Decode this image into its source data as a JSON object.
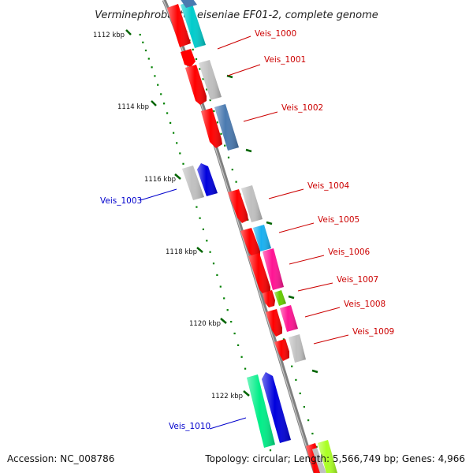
{
  "title": "Verminephrobacter eiseniae EF01-2, complete genome",
  "footer": {
    "accession": "Accession: NC_008786",
    "summary": "Topology: circular; Length: 5,566,749 bp; Genes: 4,966"
  },
  "axis": {
    "tick_labels": [
      "1112 kbp",
      "1114 kbp",
      "1116 kbp",
      "1118 kbp",
      "1120 kbp",
      "1122 kbp"
    ]
  },
  "gene_labels": [
    {
      "text": "Veis_1000",
      "color": "#cc0000"
    },
    {
      "text": "Veis_1001",
      "color": "#cc0000"
    },
    {
      "text": "Veis_1002",
      "color": "#cc0000"
    },
    {
      "text": "Veis_1003",
      "color": "#0000cc"
    },
    {
      "text": "Veis_1004",
      "color": "#cc0000"
    },
    {
      "text": "Veis_1005",
      "color": "#cc0000"
    },
    {
      "text": "Veis_1006",
      "color": "#cc0000"
    },
    {
      "text": "Veis_1007",
      "color": "#cc0000"
    },
    {
      "text": "Veis_1008",
      "color": "#cc0000"
    },
    {
      "text": "Veis_1009",
      "color": "#cc0000"
    },
    {
      "text": "Veis_1010",
      "color": "#0000cc"
    }
  ],
  "colors": {
    "backbone": "#808080",
    "dots": "#008000",
    "red": "#ff0000",
    "grey": "#c0c0c0",
    "cyan": "#00cccc",
    "steelblue": "#4a7ab0",
    "blue": "#0000dd",
    "skyblue": "#19b0f0",
    "magenta": "#ff1493",
    "green": "#66cc00",
    "springgreen": "#00ee88",
    "lime": "#aaff22"
  }
}
